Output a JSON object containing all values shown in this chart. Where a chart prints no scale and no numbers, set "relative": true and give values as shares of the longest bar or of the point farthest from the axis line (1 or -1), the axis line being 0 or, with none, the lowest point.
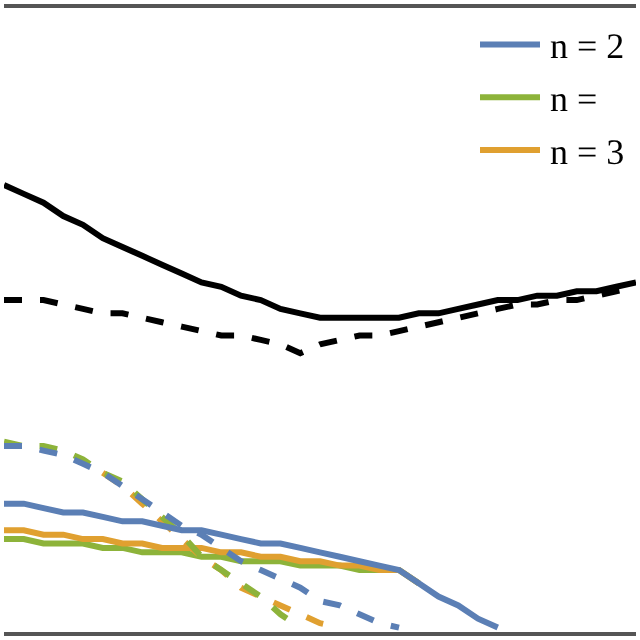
{
  "chart_data": {
    "type": "line",
    "relative": true,
    "tick_labels": false,
    "legend": "top right",
    "categories": [
      null,
      null,
      null,
      null,
      null,
      null,
      null,
      null,
      null,
      null,
      null,
      null,
      null,
      null,
      null,
      null,
      null,
      null,
      null,
      null,
      null,
      null,
      null,
      null,
      null,
      null,
      null,
      null,
      null,
      null,
      null,
      null,
      null
    ],
    "series": [
      {
        "name": "n = 2",
        "color": "#5b7fb5",
        "line_style": "solid",
        "values": [
          0.28,
          0.28,
          0.27,
          0.26,
          0.26,
          0.25,
          0.24,
          0.24,
          0.23,
          0.22,
          0.22,
          0.21,
          0.2,
          0.19,
          0.19,
          0.18,
          0.17,
          0.16,
          0.15,
          0.14,
          0.13,
          0.1,
          0.07,
          0.05,
          0.02,
          0,
          null,
          null,
          null,
          null,
          null,
          null,
          null
        ]
      },
      {
        "name": "n =",
        "color": "#8db33a",
        "line_style": "solid",
        "values": [
          0.2,
          0.2,
          0.19,
          0.19,
          0.19,
          0.18,
          0.18,
          0.17,
          0.17,
          0.17,
          0.16,
          0.16,
          0.15,
          0.15,
          0.15,
          0.14,
          0.14,
          0.14,
          0.13,
          0.13,
          0.13,
          0.1,
          null,
          null,
          null,
          null,
          null,
          null,
          null,
          null,
          null,
          null,
          null
        ]
      },
      {
        "name": "n = 3",
        "color": "#e0a030",
        "line_style": "solid",
        "values": [
          0.22,
          0.22,
          0.21,
          0.21,
          0.2,
          0.2,
          0.19,
          0.19,
          0.18,
          0.18,
          0.18,
          0.17,
          0.17,
          0.16,
          0.16,
          0.15,
          0.15,
          0.14,
          0.14,
          0.13,
          0.13,
          0.1,
          null,
          null,
          null,
          null,
          null,
          null,
          null,
          null,
          null,
          null,
          null
        ]
      },
      {
        "color": "#000000",
        "line_style": "solid",
        "values": [
          1.0,
          0.98,
          0.96,
          0.93,
          0.91,
          0.88,
          0.86,
          0.84,
          0.82,
          0.8,
          0.78,
          0.77,
          0.75,
          0.74,
          0.72,
          0.71,
          0.7,
          0.7,
          0.7,
          0.7,
          0.7,
          0.71,
          0.71,
          0.72,
          0.73,
          0.74,
          0.74,
          0.75,
          0.75,
          0.76,
          0.76,
          0.77,
          0.78
        ]
      },
      {
        "color": "#000000",
        "line_style": "dashed",
        "values": [
          0.74,
          0.74,
          0.74,
          0.73,
          0.72,
          0.71,
          0.71,
          0.7,
          0.69,
          0.68,
          0.67,
          0.66,
          0.66,
          0.65,
          0.64,
          0.62,
          0.64,
          0.65,
          0.66,
          0.66,
          0.67,
          0.68,
          0.69,
          0.7,
          0.71,
          0.72,
          0.73,
          0.73,
          0.74,
          0.74,
          0.75,
          0.76,
          0.77
        ]
      },
      {
        "color": "#5b7fb5",
        "line_style": "dashed",
        "values": [
          0.41,
          0.41,
          0.4,
          0.39,
          0.37,
          0.35,
          0.32,
          0.29,
          0.26,
          0.23,
          0.21,
          0.18,
          0.15,
          0.13,
          0.11,
          0.09,
          0.06,
          0.05,
          0.03,
          0.01,
          0,
          null,
          null,
          null,
          null,
          null,
          null,
          null,
          null,
          null,
          null,
          null,
          null
        ]
      },
      {
        "color": "#e0a030",
        "line_style": "dashed",
        "values": [
          null,
          null,
          null,
          null,
          null,
          0.35,
          0.32,
          0.28,
          0.24,
          0.2,
          0.16,
          0.13,
          0.09,
          0.07,
          0.05,
          0.03,
          0.01,
          0,
          null,
          null,
          null,
          null,
          null,
          null,
          null,
          null,
          null,
          null,
          null,
          null,
          null,
          null,
          null
        ]
      },
      {
        "color": "#8db33a",
        "line_style": "dashed",
        "values": [
          0.42,
          0.41,
          0.41,
          0.4,
          0.38,
          0.35,
          0.33,
          0.29,
          0.25,
          0.21,
          0.16,
          0.13,
          0.1,
          0.07,
          0.03,
          0,
          null,
          null,
          null,
          null,
          null,
          null,
          null,
          null,
          null,
          null,
          null,
          null,
          null,
          null,
          null,
          null,
          null
        ]
      }
    ]
  }
}
